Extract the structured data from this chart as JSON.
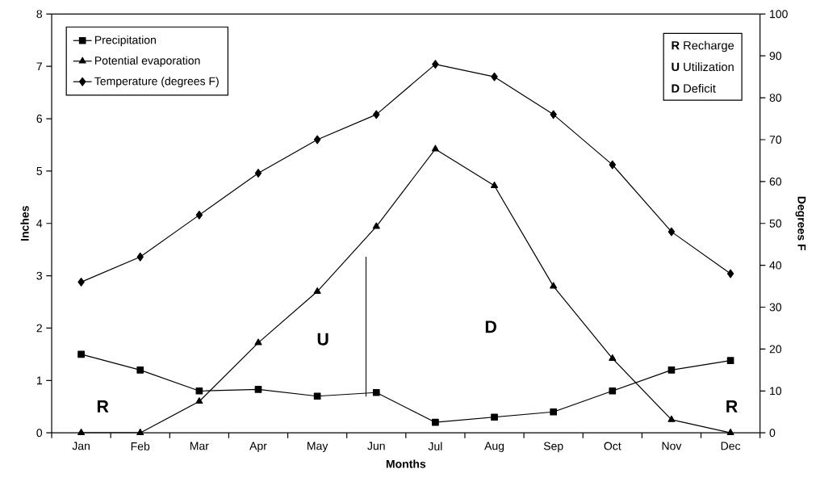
{
  "chart_data": {
    "type": "line",
    "xlabel": "Months",
    "ylabel": "Inches",
    "y2label": "Degrees F",
    "categories": [
      "Jan",
      "Feb",
      "Mar",
      "Apr",
      "May",
      "Jun",
      "Jul",
      "Aug",
      "Sep",
      "Oct",
      "Nov",
      "Dec"
    ],
    "series": [
      {
        "name": "Precipitation",
        "color": "#000000",
        "marker": "square",
        "values": [
          1.5,
          1.2,
          0.8,
          0.83,
          0.7,
          0.77,
          0.2,
          0.3,
          0.4,
          0.8,
          1.2,
          1.38
        ]
      },
      {
        "name": "Potential evaporation",
        "color": "#000000",
        "marker": "triangle",
        "values": [
          0,
          0,
          0.6,
          1.72,
          2.7,
          3.94,
          5.42,
          4.72,
          2.8,
          1.42,
          0.25,
          0
        ]
      },
      {
        "name": "Temperature (degrees F)",
        "color": "#000000",
        "marker": "diamond",
        "axis": "y2",
        "values": [
          36,
          42,
          52,
          62,
          70,
          76,
          88,
          85,
          76,
          64,
          48,
          38
        ]
      }
    ],
    "ylim": [
      0,
      8
    ],
    "yticks": [
      0,
      1,
      2,
      3,
      4,
      5,
      6,
      7,
      8
    ],
    "y2lim": [
      0,
      100
    ],
    "y2ticks": [
      0,
      10,
      20,
      30,
      40,
      50,
      60,
      70,
      80,
      90,
      100
    ],
    "legend": "top left",
    "grid": false,
    "annotations": [
      "R",
      "U",
      "D",
      "R",
      "**R** Recharge",
      "**U** Utilization",
      "**D** Deficit"
    ]
  }
}
